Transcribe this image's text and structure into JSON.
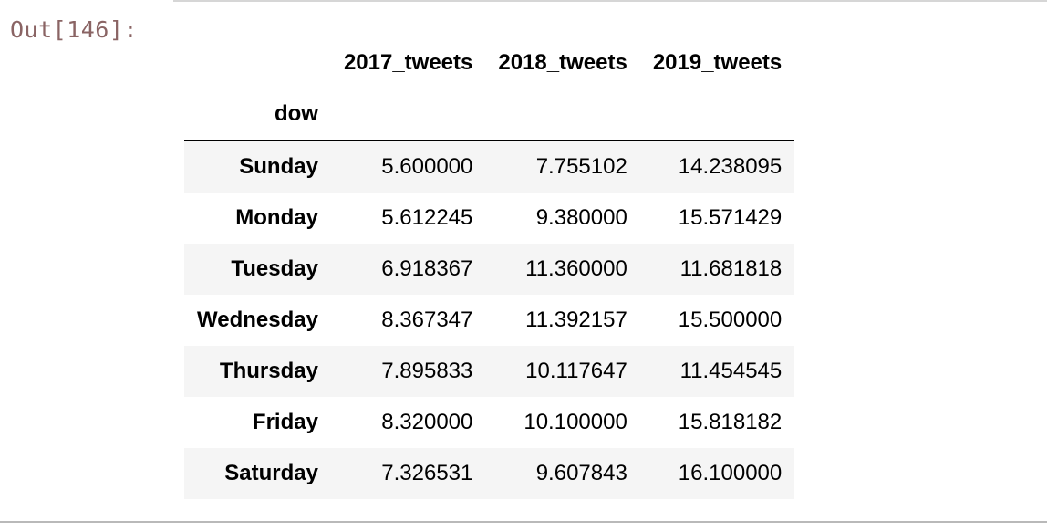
{
  "prompt": "Out[146]:",
  "index_name": "dow",
  "columns": [
    "2017_tweets",
    "2018_tweets",
    "2019_tweets"
  ],
  "rows": [
    {
      "label": "Sunday",
      "values": [
        "5.600000",
        "7.755102",
        "14.238095"
      ]
    },
    {
      "label": "Monday",
      "values": [
        "5.612245",
        "9.380000",
        "15.571429"
      ]
    },
    {
      "label": "Tuesday",
      "values": [
        "6.918367",
        "11.360000",
        "11.681818"
      ]
    },
    {
      "label": "Wednesday",
      "values": [
        "8.367347",
        "11.392157",
        "15.500000"
      ]
    },
    {
      "label": "Thursday",
      "values": [
        "7.895833",
        "10.117647",
        "11.454545"
      ]
    },
    {
      "label": "Friday",
      "values": [
        "8.320000",
        "10.100000",
        "15.818182"
      ]
    },
    {
      "label": "Saturday",
      "values": [
        "7.326531",
        "9.607843",
        "16.100000"
      ]
    }
  ]
}
